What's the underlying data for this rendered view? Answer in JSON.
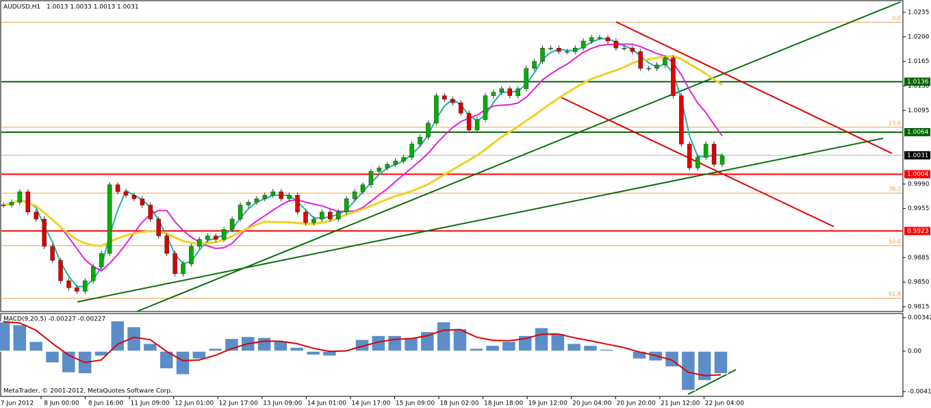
{
  "header": {
    "symbol": "AUDUSD,H1",
    "quote": "1.0013 1.0033 1.0013 1.0031"
  },
  "price_axis": {
    "range": [
      0.9815,
      1.0235
    ],
    "ticks": [
      {
        "value": 1.0235,
        "label": "1.0235"
      },
      {
        "value": 1.02,
        "label": "1.0200"
      },
      {
        "value": 1.0165,
        "label": "1.0165"
      },
      {
        "value": 1.013,
        "label": "1.0130"
      },
      {
        "value": 1.0095,
        "label": "1.0095"
      },
      {
        "value": 0.999,
        "label": "0.9990"
      },
      {
        "value": 0.9955,
        "label": "0.9955"
      },
      {
        "value": 0.9885,
        "label": "0.9885"
      },
      {
        "value": 0.985,
        "label": "0.9850"
      },
      {
        "value": 0.9815,
        "label": "0.9815"
      }
    ]
  },
  "levels": [
    {
      "value": 1.0136,
      "label": "1.0136",
      "color": "#006400"
    },
    {
      "value": 1.0064,
      "label": "1.0064",
      "color": "#006400"
    },
    {
      "value": 1.0031,
      "label": "1.0031",
      "color": "#000000"
    },
    {
      "value": 1.0004,
      "label": "1.0004",
      "color": "#ff0000"
    },
    {
      "value": 0.9923,
      "label": "0.9923",
      "color": "#ff0000"
    }
  ],
  "fibonacci": [
    {
      "value": 1.0221,
      "label": "0.0"
    },
    {
      "value": 1.0071,
      "label": "23.6"
    },
    {
      "value": 0.9977,
      "label": "38.2"
    },
    {
      "value": 0.9902,
      "label": "50.0"
    },
    {
      "value": 0.9827,
      "label": "61.8"
    }
  ],
  "closes": [
    0.996,
    0.9964,
    0.9979,
    0.995,
    0.994,
    0.9901,
    0.9881,
    0.9852,
    0.9842,
    0.9837,
    0.9852,
    0.9872,
    0.9891,
    0.9989,
    0.9979,
    0.9974,
    0.9969,
    0.996,
    0.994,
    0.9916,
    0.9891,
    0.9862,
    0.9876,
    0.9901,
    0.9911,
    0.9916,
    0.9911,
    0.9925,
    0.994,
    0.996,
    0.9964,
    0.9969,
    0.9974,
    0.9979,
    0.9969,
    0.9974,
    0.995,
    0.9935,
    0.994,
    0.995,
    0.994,
    0.995,
    0.9969,
    0.9979,
    0.9989,
    1.0008,
    1.0013,
    1.0018,
    1.0023,
    1.0028,
    1.0047,
    1.0057,
    1.0077,
    1.0116,
    1.0111,
    1.0106,
    1.0091,
    1.0067,
    1.0082,
    1.0116,
    1.0121,
    1.0126,
    1.0116,
    1.0126,
    1.0155,
    1.0165,
    1.0184,
    1.0184,
    1.0179,
    1.0179,
    1.0184,
    1.0194,
    1.0199,
    1.0199,
    1.0194,
    1.0184,
    1.0184,
    1.0179,
    1.0155,
    1.0155,
    1.016,
    1.017,
    1.0116,
    1.0047,
    1.0013,
    1.0028,
    1.0047,
    1.0018,
    1.003
  ],
  "time_axis": [
    "7 Jun 2012",
    "8 Jun 00:00",
    "8 Jun 16:00",
    "11 Jun 09:00",
    "12 Jun 01:00",
    "12 Jun 17:00",
    "13 Jun 09:00",
    "14 Jun 01:00",
    "14 Jun 17:00",
    "15 Jun 09:00",
    "18 Jun 02:00",
    "18 Jun 18:00",
    "19 Jun 12:00",
    "20 Jun 04:00",
    "20 Jun 20:00",
    "21 Jun 12:00",
    "22 Jun 04:00"
  ],
  "macd": {
    "label": "MACD(9,20,5) -0.00227 -0.00227",
    "ticks": [
      {
        "value": 0.00342,
        "label": "0.00342"
      },
      {
        "value": 0,
        "label": "0.00"
      },
      {
        "value": -0.00412,
        "label": "-0.00412"
      }
    ],
    "histogram": [
      0.003,
      0.0027,
      0.001,
      -0.0012,
      -0.0022,
      -0.0023,
      -0.0005,
      0.0031,
      0.0025,
      0.0008,
      -0.0018,
      -0.0024,
      -0.0008,
      0.0003,
      0.0013,
      0.0015,
      0.0014,
      0.001,
      0.0004,
      -0.0004,
      -0.0005,
      0.0001,
      0.0012,
      0.0016,
      0.0016,
      0.0014,
      0.002,
      0.003,
      0.0023,
      0.0003,
      0.0006,
      0.001,
      0.0016,
      0.0024,
      0.0018,
      0.0008,
      0.0006,
      0.0002,
      -0.0001,
      -0.0008,
      -0.001,
      -0.0016,
      -0.004,
      -0.003,
      -0.0023
    ]
  },
  "footer": "MetaTrader, © 2001-2012, MetaQuotes Software Corp."
}
